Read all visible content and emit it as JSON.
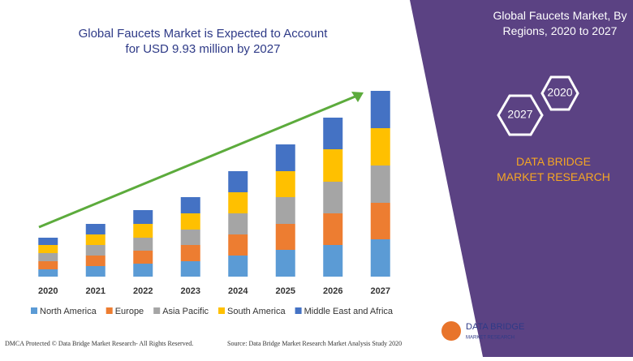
{
  "chart_data": {
    "type": "stacked-bar",
    "title": "Global Faucets Market is Expected to Account for USD 9.93 million by 2027",
    "categories": [
      "2020",
      "2021",
      "2022",
      "2023",
      "2024",
      "2025",
      "2026",
      "2027"
    ],
    "series": [
      {
        "name": "North America",
        "color": "#5b9bd5",
        "values": [
          9,
          13,
          16,
          19,
          26,
          33,
          39,
          46
        ]
      },
      {
        "name": "Europe",
        "color": "#ed7d31",
        "values": [
          10,
          13,
          16,
          20,
          26,
          32,
          39,
          45
        ]
      },
      {
        "name": "Asia Pacific",
        "color": "#a5a5a5",
        "values": [
          10,
          13,
          16,
          19,
          26,
          33,
          39,
          46
        ]
      },
      {
        "name": "South America",
        "color": "#ffc000",
        "values": [
          10,
          13,
          17,
          20,
          26,
          32,
          40,
          46
        ]
      },
      {
        "name": "Middle East and Africa",
        "color": "#4472c4",
        "values": [
          9,
          13,
          17,
          20,
          26,
          33,
          39,
          46
        ]
      }
    ],
    "ylim": [
      0,
      240
    ]
  },
  "panel": {
    "title": "Global Faucets Market, By Regions, 2020 to 2027",
    "hex_start": "2020",
    "hex_end": "2027",
    "brand": "DATA BRIDGE MARKET RESEARCH"
  },
  "footer": {
    "left": "DMCA Protected © Data Bridge Market Research- All Rights Reserved.",
    "right": "Source: Data Bridge Market Research Market Analysis Study 2020",
    "logo_top": "DATA BRIDGE",
    "logo_bottom": "MARKET RESEARCH"
  }
}
